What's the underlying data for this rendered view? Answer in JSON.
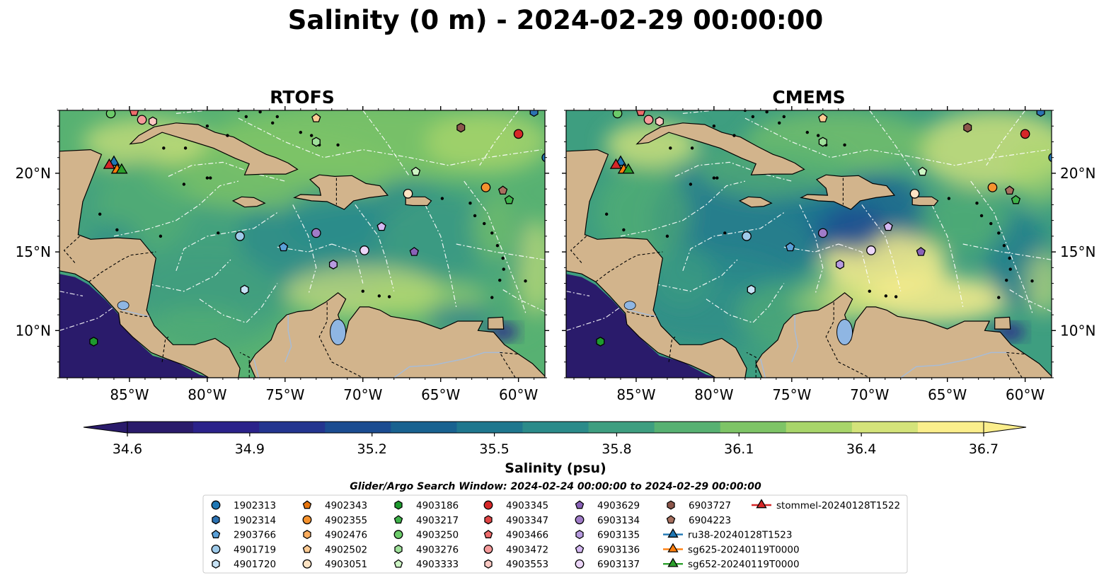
{
  "title": "Salinity (0 m) - 2024-02-29 00:00:00",
  "panels": [
    {
      "title": "RTOFS"
    },
    {
      "title": "CMEMS"
    }
  ],
  "axes": {
    "lon_ticks": [
      "85°W",
      "80°W",
      "75°W",
      "70°W",
      "65°W",
      "60°W"
    ],
    "lat_ticks": [
      "20°N",
      "15°N",
      "10°N"
    ],
    "lon_values": [
      -85,
      -80,
      -75,
      -70,
      -65,
      -60
    ],
    "lat_values": [
      20,
      15,
      10
    ],
    "lon_range": [
      -89.5,
      -58.3
    ],
    "lat_range": [
      7.0,
      24.0
    ]
  },
  "colorbar": {
    "ticks": [
      "34.6",
      "34.9",
      "35.2",
      "35.5",
      "35.8",
      "36.1",
      "36.4",
      "36.7"
    ],
    "tick_values": [
      34.6,
      34.9,
      35.2,
      35.5,
      35.8,
      36.1,
      36.4,
      36.7
    ],
    "range": [
      34.6,
      36.7
    ],
    "label": "Salinity (psu)",
    "colors": [
      "#2a1b6b",
      "#2b228a",
      "#23358f",
      "#1b4c91",
      "#196290",
      "#1f778e",
      "#2b8b8a",
      "#3e9e80",
      "#57b172",
      "#7ec466",
      "#a8d56a",
      "#d4e37a",
      "#fbee8c"
    ]
  },
  "search_window": "Glider/Argo Search Window: 2024-02-24 00:00:00 to 2024-02-29 00:00:00",
  "colors": {
    "land": "#d2b48c",
    "pacific": "#2a1b6b",
    "lake": "#8fb6e3"
  },
  "legend": [
    {
      "label": "1902313",
      "shape": "circle",
      "color": "#1f77b4"
    },
    {
      "label": "1902314",
      "shape": "hexagon",
      "color": "#2c72b2"
    },
    {
      "label": "2903766",
      "shape": "pentagon",
      "color": "#5aa0d8"
    },
    {
      "label": "4901719",
      "shape": "circle",
      "color": "#9ecae9"
    },
    {
      "label": "4901720",
      "shape": "hexagon",
      "color": "#c6e2f5"
    },
    {
      "label": "4902343",
      "shape": "pentagon",
      "color": "#e6750e"
    },
    {
      "label": "4902355",
      "shape": "circle",
      "color": "#f5922e"
    },
    {
      "label": "4902476",
      "shape": "hexagon",
      "color": "#fbad5e"
    },
    {
      "label": "4902502",
      "shape": "pentagon",
      "color": "#fdcb94"
    },
    {
      "label": "4903051",
      "shape": "circle",
      "color": "#fde3c3"
    },
    {
      "label": "4903186",
      "shape": "hexagon",
      "color": "#1e9a2e"
    },
    {
      "label": "4903217",
      "shape": "pentagon",
      "color": "#3fb24a"
    },
    {
      "label": "4903250",
      "shape": "circle",
      "color": "#6ccb6a"
    },
    {
      "label": "4903276",
      "shape": "hexagon",
      "color": "#9fe09a"
    },
    {
      "label": "4903333",
      "shape": "pentagon",
      "color": "#cdf5c4"
    },
    {
      "label": "4903345",
      "shape": "circle",
      "color": "#d62728"
    },
    {
      "label": "4903347",
      "shape": "hexagon",
      "color": "#e04545"
    },
    {
      "label": "4903466",
      "shape": "pentagon",
      "color": "#ee6b6b"
    },
    {
      "label": "4903472",
      "shape": "circle",
      "color": "#f59a9a"
    },
    {
      "label": "4903553",
      "shape": "hexagon",
      "color": "#fbc9c3"
    },
    {
      "label": "4903629",
      "shape": "pentagon",
      "color": "#8a62b8"
    },
    {
      "label": "6903134",
      "shape": "circle",
      "color": "#a07cc8"
    },
    {
      "label": "6903135",
      "shape": "hexagon",
      "color": "#b79be0"
    },
    {
      "label": "6903136",
      "shape": "pentagon",
      "color": "#d4b8f2"
    },
    {
      "label": "6903137",
      "shape": "circle",
      "color": "#ecd6f8"
    },
    {
      "label": "6903727",
      "shape": "hexagon",
      "color": "#8c564b"
    },
    {
      "label": "6904223",
      "shape": "pentagon",
      "color": "#a8705f"
    },
    {
      "label": "ru38-20240128T1523",
      "shape": "triangle-line",
      "color": "#1f77b4"
    },
    {
      "label": "sg625-20240119T0000",
      "shape": "triangle-line",
      "color": "#ff7f0e"
    },
    {
      "label": "sg652-20240119T0000",
      "shape": "triangle-line",
      "color": "#2ca02c"
    },
    {
      "label": "stommel-20240128T1522",
      "shape": "triangle-line",
      "color": "#d62728"
    }
  ],
  "markers": [
    {
      "id": "1902313",
      "lon": -58.2,
      "lat": 21.0
    },
    {
      "id": "1902314",
      "lon": -59.0,
      "lat": 23.9
    },
    {
      "id": "4902355",
      "lon": -62.1,
      "lat": 19.1
    },
    {
      "id": "4903345",
      "lon": -60.0,
      "lat": 22.5
    },
    {
      "id": "6903727",
      "lon": -63.7,
      "lat": 22.9
    },
    {
      "id": "6904223",
      "lon": -61.0,
      "lat": 18.9
    },
    {
      "id": "4903217",
      "lon": -60.6,
      "lat": 18.3
    },
    {
      "id": "4903333",
      "lon": -66.6,
      "lat": 20.1
    },
    {
      "id": "4903051",
      "lon": -67.1,
      "lat": 18.7
    },
    {
      "id": "6903136",
      "lon": -68.8,
      "lat": 16.6
    },
    {
      "id": "4903629",
      "lon": -66.7,
      "lat": 15.0
    },
    {
      "id": "6903137",
      "lon": -69.9,
      "lat": 15.1
    },
    {
      "id": "6903135",
      "lon": -71.9,
      "lat": 14.2
    },
    {
      "id": "6903134",
      "lon": -73.0,
      "lat": 16.2
    },
    {
      "id": "2903766",
      "lon": -75.1,
      "lat": 15.3
    },
    {
      "id": "4901719",
      "lon": -77.9,
      "lat": 16.0
    },
    {
      "id": "4901720",
      "lon": -77.6,
      "lat": 12.6
    },
    {
      "id": "4903186",
      "lon": -87.3,
      "lat": 9.3
    },
    {
      "id": "4903276",
      "lon": -73.0,
      "lat": 22.0
    },
    {
      "id": "4902502",
      "lon": -73.0,
      "lat": 23.5
    },
    {
      "id": "4903472",
      "lon": -84.2,
      "lat": 23.4
    },
    {
      "id": "4903553",
      "lon": -83.5,
      "lat": 23.3
    },
    {
      "id": "4903466",
      "lon": -84.7,
      "lat": 23.9
    },
    {
      "id": "4903250",
      "lon": -86.2,
      "lat": 23.8
    }
  ],
  "gliders": [
    {
      "id": "ru38-20240128T1523",
      "lon": -86.0,
      "lat": 20.7
    },
    {
      "id": "sg625-20240119T0000",
      "lon": -85.8,
      "lat": 20.2
    },
    {
      "id": "sg652-20240119T0000",
      "lon": -85.5,
      "lat": 20.2
    },
    {
      "id": "stommel-20240128T1522",
      "lon": -86.3,
      "lat": 20.5
    }
  ]
}
